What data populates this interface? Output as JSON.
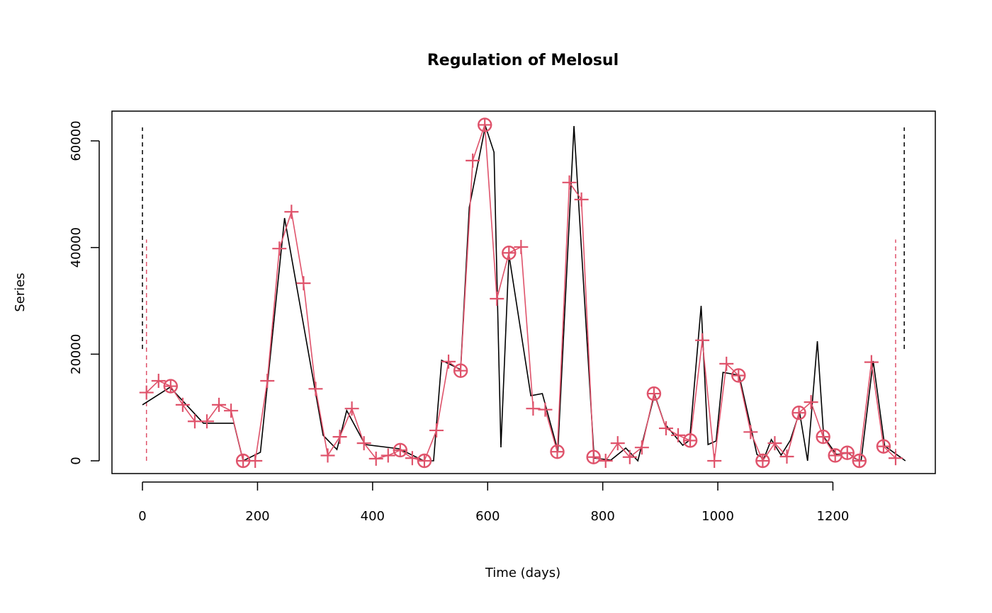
{
  "chart_data": {
    "type": "line",
    "title": "Regulation of Melosul",
    "xlabel": "Time (days)",
    "ylabel": "Series",
    "xlim": [
      -53,
      1378
    ],
    "ylim": [
      -2390,
      65580
    ],
    "xticks": [
      0,
      200,
      400,
      600,
      800,
      1000,
      1200
    ],
    "yticks": [
      0,
      20000,
      40000,
      60000
    ],
    "xtick_labels": [
      "0",
      "200",
      "400",
      "600",
      "800",
      "1000",
      "1200"
    ],
    "ytick_labels": [
      "0",
      "20000",
      "40000",
      "60000"
    ],
    "grid": false,
    "colors": {
      "observed": "#000000",
      "model": "#DF536B"
    },
    "series": [
      {
        "name": "observed",
        "color": "#000000",
        "x": [
          0,
          48,
          106,
          159,
          175,
          205,
          247,
          314,
          338,
          355,
          387,
          446,
          489,
          506,
          520,
          553,
          568,
          596,
          611,
          623,
          637,
          675,
          695,
          722,
          750,
          785,
          814,
          840,
          861,
          890,
          907,
          939,
          951,
          971,
          983,
          997,
          1009,
          1037,
          1068,
          1080,
          1093,
          1110,
          1126,
          1142,
          1156,
          1173,
          1184,
          1206,
          1227,
          1239,
          1249,
          1270,
          1290,
          1326
        ],
        "y": [
          10490,
          13800,
          7040,
          7040,
          0,
          1590,
          45530,
          4780,
          2120,
          9430,
          3050,
          2260,
          0,
          0,
          18850,
          17120,
          47520,
          62790,
          57880,
          2520,
          38630,
          12210,
          12610,
          1860,
          62790,
          530,
          130,
          2390,
          0,
          12480,
          7040,
          2920,
          3850,
          29070,
          3050,
          3720,
          16590,
          16060,
          1190,
          400,
          3980,
          1060,
          3850,
          9160,
          0,
          22430,
          4510,
          1190,
          1460,
          400,
          0,
          18720,
          2790,
          0
        ]
      },
      {
        "name": "model",
        "color": "#DF536B",
        "x_start": 7,
        "x_step": 21,
        "y": [
          12800,
          15000,
          14000,
          10500,
          7400,
          7400,
          10500,
          9400,
          0,
          0,
          15000,
          39800,
          46700,
          33300,
          13500,
          1000,
          4500,
          9800,
          3300,
          400,
          1000,
          2000,
          500,
          0,
          5700,
          18600,
          16900,
          56300,
          63000,
          30400,
          39000,
          40100,
          9800,
          9600,
          1700,
          52200,
          49000,
          700,
          0,
          3300,
          700,
          2500,
          12600,
          6100,
          4800,
          3800,
          22600,
          0,
          18200,
          16000,
          5400,
          0,
          3300,
          800,
          9000,
          11000,
          4500,
          1000,
          1500,
          0,
          18500,
          2700,
          500
        ],
        "circled_indices": [
          2,
          8,
          21,
          23,
          26,
          28,
          30,
          34,
          37,
          42,
          45,
          49,
          51,
          54,
          56,
          57,
          58,
          59,
          61
        ]
      }
    ],
    "vlines": [
      {
        "series": "observed",
        "x": 0,
        "y0": 20970,
        "y1": 62530,
        "color": "#000000"
      },
      {
        "series": "observed",
        "x": 1324,
        "y0": 20970,
        "y1": 62530,
        "color": "#000000"
      },
      {
        "series": "model",
        "x": 7,
        "y0": 0,
        "y1": 41500,
        "color": "#DF536B"
      },
      {
        "series": "model",
        "x": 1309,
        "y0": 0,
        "y1": 41500,
        "color": "#DF536B"
      }
    ]
  }
}
